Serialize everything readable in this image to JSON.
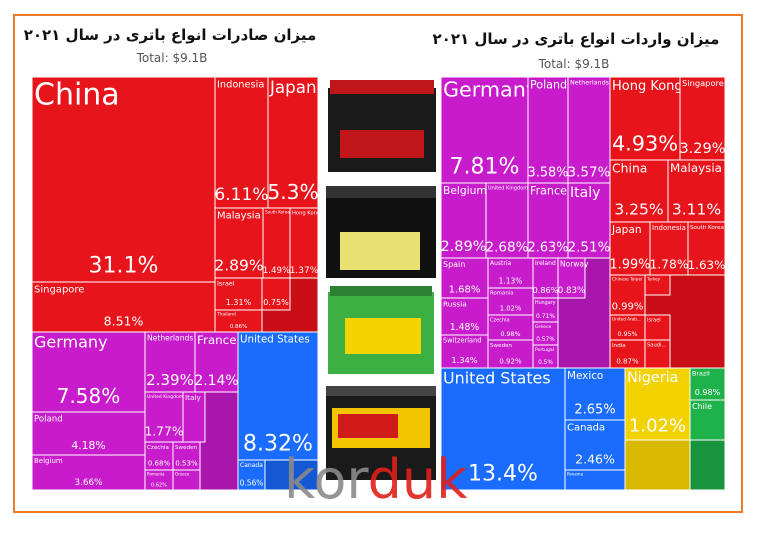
{
  "chart_data": [
    {
      "type": "treemap",
      "title": "میزان صادرات انواع باتری در سال ۲۰۲۱",
      "subtitle": "Total: $9.1B",
      "tiles": [
        {
          "name": "China",
          "value": 31.1,
          "value_label": "31.1%",
          "color": "#e8141b"
        },
        {
          "name": "Singapore",
          "value": 8.51,
          "value_label": "8.51%",
          "color": "#e8141b"
        },
        {
          "name": "Indonesia",
          "value": 6.11,
          "value_label": "6.11%",
          "color": "#e8141b"
        },
        {
          "name": "Japan",
          "value": 5.3,
          "value_label": "5.3%",
          "color": "#e8141b"
        },
        {
          "name": "Malaysia",
          "value": 2.89,
          "value_label": "2.89%",
          "color": "#e8141b"
        },
        {
          "name": "South Korea",
          "value": 1.49,
          "value_label": "1.49%",
          "color": "#e8141b"
        },
        {
          "name": "Hong Kong",
          "value": 1.37,
          "value_label": "1.37%",
          "color": "#e8141b"
        },
        {
          "name": "Israel",
          "value": 1.31,
          "value_label": "1.31%",
          "color": "#e8141b"
        },
        {
          "name": "Thailand",
          "value": 0.86,
          "value_label": "0.86%",
          "color": "#e8141b"
        },
        {
          "name": null,
          "value": 0.75,
          "value_label": "0.75%",
          "color": "#e8141b"
        },
        {
          "name": "Germany",
          "value": 7.58,
          "value_label": "7.58%",
          "color": "#c81ccc"
        },
        {
          "name": "Netherlands",
          "value": 2.39,
          "value_label": "2.39%",
          "color": "#c81ccc"
        },
        {
          "name": "France",
          "value": 2.14,
          "value_label": "2.14%",
          "color": "#c81ccc"
        },
        {
          "name": "Poland",
          "value": 4.18,
          "value_label": "4.18%",
          "color": "#c81ccc"
        },
        {
          "name": "Belgium",
          "value": 3.66,
          "value_label": "3.66%",
          "color": "#c81ccc"
        },
        {
          "name": "United Kingdom",
          "value": 1.77,
          "value_label": "1.77%",
          "color": "#c81ccc"
        },
        {
          "name": "Italy",
          "value": null,
          "value_label": null,
          "color": "#c81ccc"
        },
        {
          "name": "Czechia",
          "value": 0.68,
          "value_label": "0.68%",
          "color": "#c81ccc"
        },
        {
          "name": "Sweden",
          "value": 0.53,
          "value_label": "0.53%",
          "color": "#c81ccc"
        },
        {
          "name": "Romania",
          "value": 0.62,
          "value_label": "0.62%",
          "color": "#c81ccc"
        },
        {
          "name": "Greece",
          "value": null,
          "value_label": null,
          "color": "#c81ccc"
        },
        {
          "name": "United States",
          "value": 8.32,
          "value_label": "8.32%",
          "color": "#1a6cff"
        },
        {
          "name": "Canada",
          "value": 0.56,
          "value_label": "0.56%",
          "color": "#1a6cff"
        }
      ]
    },
    {
      "type": "treemap",
      "title": "میزان واردات انواع باتری در سال ۲۰۲۱",
      "subtitle": "Total: $9.1B",
      "tiles": [
        {
          "name": "Germany",
          "value": 7.81,
          "value_label": "7.81%",
          "color": "#c81ccc"
        },
        {
          "name": "Poland",
          "value": 3.58,
          "value_label": "3.58%",
          "color": "#c81ccc"
        },
        {
          "name": "Netherlands",
          "value": 3.57,
          "value_label": "3.57%",
          "color": "#c81ccc"
        },
        {
          "name": "Belgium",
          "value": 2.89,
          "value_label": "2.89%",
          "color": "#c81ccc"
        },
        {
          "name": "United Kingdom",
          "value": 2.68,
          "value_label": "2.68%",
          "color": "#c81ccc"
        },
        {
          "name": "France",
          "value": 2.63,
          "value_label": "2.63%",
          "color": "#c81ccc"
        },
        {
          "name": "Italy",
          "value": 2.51,
          "value_label": "2.51%",
          "color": "#c81ccc"
        },
        {
          "name": "Spain",
          "value": 1.68,
          "value_label": "1.68%",
          "color": "#c81ccc"
        },
        {
          "name": "Austria",
          "value": 1.13,
          "value_label": "1.13%",
          "color": "#c81ccc"
        },
        {
          "name": "Ireland",
          "value": 0.86,
          "value_label": "0.86%",
          "color": "#c81ccc"
        },
        {
          "name": "Norway",
          "value": 0.83,
          "value_label": "0.83%",
          "color": "#c81ccc"
        },
        {
          "name": "Russia",
          "value": 1.48,
          "value_label": "1.48%",
          "color": "#c81ccc"
        },
        {
          "name": "Romania",
          "value": 1.02,
          "value_label": "1.02%",
          "color": "#c81ccc"
        },
        {
          "name": "Czechia",
          "value": 0.98,
          "value_label": "0.98%",
          "color": "#c81ccc"
        },
        {
          "name": "Hungary",
          "value": 0.71,
          "value_label": "0.71%",
          "color": "#c81ccc"
        },
        {
          "name": "Switzerland",
          "value": 1.34,
          "value_label": "1.34%",
          "color": "#c81ccc"
        },
        {
          "name": "Sweden",
          "value": 0.92,
          "value_label": "0.92%",
          "color": "#c81ccc"
        },
        {
          "name": "Greece",
          "value": 0.57,
          "value_label": "0.57%",
          "color": "#c81ccc"
        },
        {
          "name": "Portugal",
          "value": 0.5,
          "value_label": "0.5%",
          "color": "#c81ccc"
        },
        {
          "name": "Hong Kong",
          "value": 4.93,
          "value_label": "4.93%",
          "color": "#e8141b"
        },
        {
          "name": "Singapore",
          "value": 3.29,
          "value_label": "3.29%",
          "color": "#e8141b"
        },
        {
          "name": "China",
          "value": 3.25,
          "value_label": "3.25%",
          "color": "#e8141b"
        },
        {
          "name": "Malaysia",
          "value": 3.11,
          "value_label": "3.11%",
          "color": "#e8141b"
        },
        {
          "name": "Japan",
          "value": 1.99,
          "value_label": "1.99%",
          "color": "#e8141b"
        },
        {
          "name": "Indonesia",
          "value": 1.78,
          "value_label": "1.78%",
          "color": "#e8141b"
        },
        {
          "name": "South Korea",
          "value": 1.63,
          "value_label": "1.63%",
          "color": "#e8141b"
        },
        {
          "name": "Chinese Taipei",
          "value": 0.99,
          "value_label": "0.99%",
          "color": "#e8141b"
        },
        {
          "name": "Turkey",
          "value": null,
          "value_label": null,
          "color": "#e8141b"
        },
        {
          "name": "United Arab...",
          "value": 0.95,
          "value_label": "0.95%",
          "color": "#e8141b"
        },
        {
          "name": "Israel",
          "value": null,
          "value_label": null,
          "color": "#e8141b"
        },
        {
          "name": "India",
          "value": 0.87,
          "value_label": "0.87%",
          "color": "#e8141b"
        },
        {
          "name": "Saudi...",
          "value": null,
          "value_label": null,
          "color": "#e8141b"
        },
        {
          "name": "United States",
          "value": 13.4,
          "value_label": "13.4%",
          "color": "#1a6cff"
        },
        {
          "name": "Mexico",
          "value": 2.65,
          "value_label": "2.65%",
          "color": "#1a6cff"
        },
        {
          "name": "Canada",
          "value": 2.46,
          "value_label": "2.46%",
          "color": "#1a6cff"
        },
        {
          "name": "Panama",
          "value": null,
          "value_label": null,
          "color": "#1a6cff"
        },
        {
          "name": "Nigeria",
          "value": 1.02,
          "value_label": "1.02%",
          "color": "#f2d200"
        },
        {
          "name": "Brazil",
          "value": 0.98,
          "value_label": "0.98%",
          "color": "#1fb24a"
        },
        {
          "name": "Chile",
          "value": null,
          "value_label": null,
          "color": "#1fb24a"
        }
      ]
    }
  ],
  "watermark": [
    "kor",
    "duk"
  ]
}
